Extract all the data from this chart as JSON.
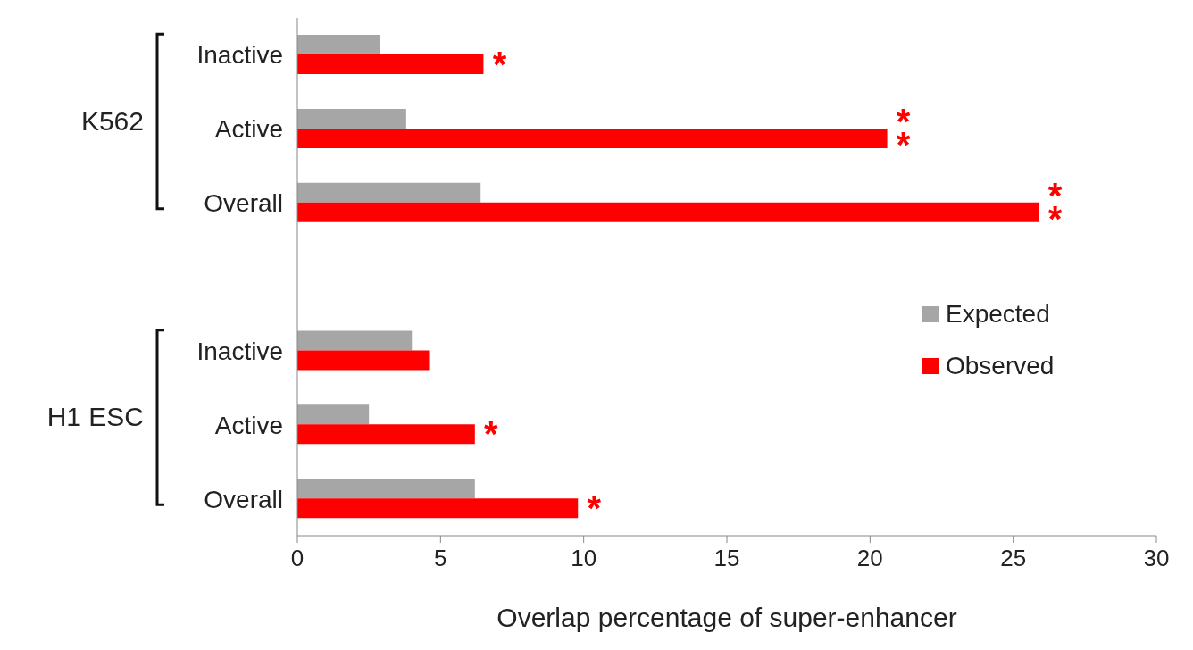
{
  "chart_data": {
    "type": "bar",
    "orientation": "horizontal",
    "xlabel": "Overlap percentage of super-enhancer",
    "categories": [
      "Inactive",
      "Active",
      "Overall",
      null,
      "Inactive",
      "Active",
      "Overall"
    ],
    "series": [
      {
        "name": "Expected",
        "color": "#a6a6a6",
        "values": [
          2.9,
          3.8,
          6.4,
          null,
          4.0,
          2.5,
          6.2
        ]
      },
      {
        "name": "Observed",
        "color": "#ff0000",
        "values": [
          6.5,
          20.6,
          25.9,
          null,
          4.6,
          6.2,
          9.8
        ],
        "value_labels": [
          "*",
          "**",
          "**",
          null,
          null,
          "*",
          "*"
        ]
      }
    ],
    "annotations": [
      "K562",
      "H1 ESC"
    ],
    "xlim": [
      0,
      30
    ],
    "xticks": [
      0,
      5,
      10,
      15,
      20,
      25,
      30
    ],
    "grid": false,
    "legend": "right"
  }
}
